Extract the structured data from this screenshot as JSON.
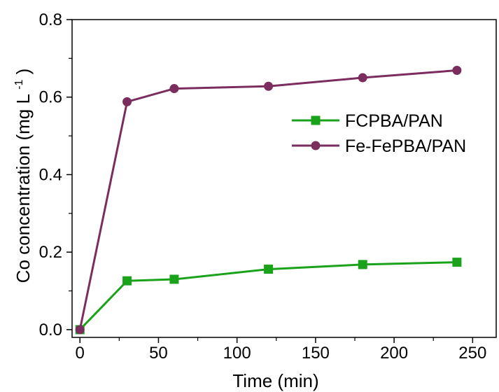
{
  "chart_data": {
    "type": "line",
    "xlabel": "Time (min)",
    "ylabel": "Co concentration (mg L",
    "ylabel_superscript": "-1",
    "ylabel_close": ")",
    "xlim": [
      -5,
      265
    ],
    "ylim": [
      -0.02,
      0.8
    ],
    "x_ticks": [
      0,
      50,
      100,
      150,
      200,
      250
    ],
    "x_tick_labels": [
      "0",
      "50",
      "100",
      "150",
      "200",
      "250"
    ],
    "y_ticks": [
      0.0,
      0.2,
      0.4,
      0.6,
      0.8
    ],
    "y_tick_labels": [
      "0.0",
      "0.2",
      "0.4",
      "0.6",
      "0.8"
    ],
    "grid": false,
    "legend_position": "right-center",
    "series": [
      {
        "name": "FCPBA/PAN",
        "color": "#1aa31a",
        "marker": "square",
        "x": [
          0,
          30,
          60,
          120,
          180,
          240
        ],
        "y": [
          0.0,
          0.126,
          0.13,
          0.156,
          0.168,
          0.174
        ]
      },
      {
        "name": "Fe-FePBA/PAN",
        "color": "#7b2d5e",
        "marker": "circle",
        "x": [
          0,
          30,
          60,
          120,
          180,
          240
        ],
        "y": [
          0.0,
          0.588,
          0.622,
          0.628,
          0.65,
          0.669
        ]
      }
    ]
  }
}
